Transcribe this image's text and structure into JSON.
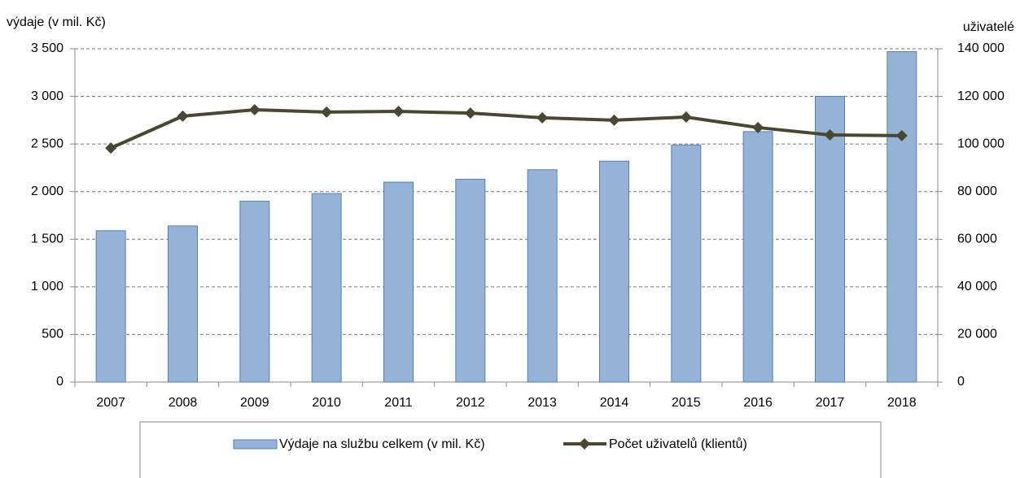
{
  "chart_data": {
    "type": "bar_line",
    "y_label": "výdaje (v mil. Kč)",
    "y2_label": "uživatelé",
    "categories": [
      "2007",
      "2008",
      "2009",
      "2010",
      "2011",
      "2012",
      "2013",
      "2014",
      "2015",
      "2016",
      "2017",
      "2018"
    ],
    "series": [
      {
        "name": "Výdaje na službu celkem (v mil. Kč)",
        "type": "bar",
        "color": "#95b3d7",
        "values": [
          1590,
          1640,
          1900,
          1980,
          2100,
          2130,
          2230,
          2320,
          2490,
          2630,
          3000,
          3470
        ]
      },
      {
        "name": "Počet uživatelů (klientů)",
        "type": "line",
        "axis": "y2",
        "color": "#4a4730",
        "values": [
          98300,
          111700,
          114400,
          113400,
          113700,
          113000,
          111000,
          110000,
          111300,
          106900,
          103800,
          103500
        ]
      }
    ],
    "ylim": [
      0,
      3500
    ],
    "yticks": [
      0,
      500,
      {
        "value": 1000,
        "label": "1 000"
      },
      {
        "value": 1500,
        "label": "1 500"
      },
      {
        "value": 2000,
        "label": "2 000"
      },
      {
        "value": 2500,
        "label": "2 500"
      },
      {
        "value": 3000,
        "label": "3 000"
      },
      {
        "value": 3500,
        "label": "3 500"
      }
    ],
    "y2lim": [
      0,
      140000
    ],
    "y2ticks": [
      0,
      {
        "value": 20000,
        "label": "20 000"
      },
      {
        "value": 40000,
        "label": "40 000"
      },
      {
        "value": 60000,
        "label": "60 000"
      },
      {
        "value": 80000,
        "label": "80 000"
      },
      {
        "value": 100000,
        "label": "100 000"
      },
      {
        "value": 120000,
        "label": "120 000"
      },
      {
        "value": 140000,
        "label": "140 000"
      }
    ],
    "grid": true
  }
}
